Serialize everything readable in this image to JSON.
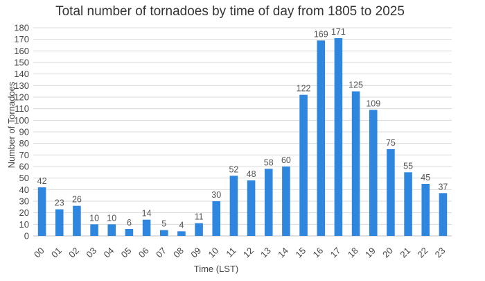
{
  "chart_data": {
    "type": "bar",
    "title": "Total number of tornadoes by time of day from 1805 to 2025",
    "xlabel": "Time (LST)",
    "ylabel": "Number of Tornadoes",
    "ylim": [
      0,
      180
    ],
    "ytick_step": 10,
    "grid": true,
    "legend": "none",
    "bar_color": "#2e86de",
    "categories": [
      "00",
      "01",
      "02",
      "03",
      "04",
      "05",
      "06",
      "07",
      "08",
      "09",
      "10",
      "11",
      "12",
      "13",
      "14",
      "15",
      "16",
      "17",
      "18",
      "19",
      "20",
      "21",
      "22",
      "23"
    ],
    "values": [
      42,
      23,
      26,
      10,
      10,
      6,
      14,
      5,
      4,
      11,
      30,
      52,
      48,
      58,
      60,
      122,
      169,
      171,
      125,
      109,
      75,
      55,
      45,
      37
    ]
  }
}
